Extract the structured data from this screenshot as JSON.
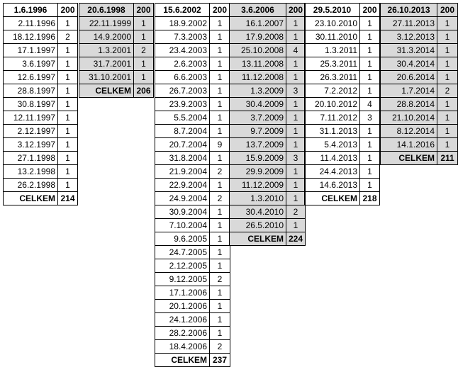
{
  "blocks": [
    {
      "header_date": "1.6.1996",
      "header_count": "200",
      "shaded": false,
      "rows": [
        [
          "2.11.1996",
          "1"
        ],
        [
          "18.12.1996",
          "2"
        ],
        [
          "17.1.1997",
          "1"
        ],
        [
          "3.6.1997",
          "1"
        ],
        [
          "12.6.1997",
          "1"
        ],
        [
          "28.8.1997",
          "1"
        ],
        [
          "30.8.1997",
          "1"
        ],
        [
          "12.11.1997",
          "1"
        ],
        [
          "2.12.1997",
          "1"
        ],
        [
          "3.12.1997",
          "1"
        ],
        [
          "27.1.1998",
          "1"
        ],
        [
          "13.2.1998",
          "1"
        ],
        [
          "26.2.1998",
          "1"
        ]
      ],
      "total_label": "CELKEM",
      "total_value": "214"
    },
    {
      "header_date": "20.6.1998",
      "header_count": "200",
      "shaded": true,
      "rows": [
        [
          "22.11.1999",
          "1"
        ],
        [
          "14.9.2000",
          "1"
        ],
        [
          "1.3.2001",
          "2"
        ],
        [
          "31.7.2001",
          "1"
        ],
        [
          "31.10.2001",
          "1"
        ]
      ],
      "total_label": "CELKEM",
      "total_value": "206"
    },
    {
      "header_date": "15.6.2002",
      "header_count": "200",
      "shaded": false,
      "rows": [
        [
          "18.9.2002",
          "1"
        ],
        [
          "7.3.2003",
          "1"
        ],
        [
          "23.4.2003",
          "1"
        ],
        [
          "2.6.2003",
          "1"
        ],
        [
          "6.6.2003",
          "1"
        ],
        [
          "26.7.2003",
          "1"
        ],
        [
          "23.9.2003",
          "1"
        ],
        [
          "5.5.2004",
          "1"
        ],
        [
          "8.7.2004",
          "1"
        ],
        [
          "20.7.2004",
          "9"
        ],
        [
          "31.8.2004",
          "1"
        ],
        [
          "21.9.2004",
          "2"
        ],
        [
          "22.9.2004",
          "1"
        ],
        [
          "24.9.2004",
          "2"
        ],
        [
          "30.9.2004",
          "1"
        ],
        [
          "7.10.2004",
          "1"
        ],
        [
          "9.6.2005",
          "1"
        ],
        [
          "24.7.2005",
          "1"
        ],
        [
          "2.12.2005",
          "1"
        ],
        [
          "9.12.2005",
          "2"
        ],
        [
          "17.1.2006",
          "1"
        ],
        [
          "20.1.2006",
          "1"
        ],
        [
          "24.1.2006",
          "1"
        ],
        [
          "28.2.2006",
          "1"
        ],
        [
          "18.4.2006",
          "2"
        ]
      ],
      "total_label": "CELKEM",
      "total_value": "237"
    },
    {
      "header_date": "3.6.2006",
      "header_count": "200",
      "shaded": true,
      "rows": [
        [
          "16.1.2007",
          "1"
        ],
        [
          "17.9.2008",
          "1"
        ],
        [
          "25.10.2008",
          "4"
        ],
        [
          "13.11.2008",
          "1"
        ],
        [
          "11.12.2008",
          "1"
        ],
        [
          "1.3.2009",
          "3"
        ],
        [
          "30.4.2009",
          "1"
        ],
        [
          "3.7.2009",
          "1"
        ],
        [
          "9.7.2009",
          "1"
        ],
        [
          "13.7.2009",
          "1"
        ],
        [
          "15.9.2009",
          "3"
        ],
        [
          "29.9.2009",
          "1"
        ],
        [
          "11.12.2009",
          "1"
        ],
        [
          "1.3.2010",
          "1"
        ],
        [
          "30.4.2010",
          "2"
        ],
        [
          "26.5.2010",
          "1"
        ]
      ],
      "total_label": "CELKEM",
      "total_value": "224"
    },
    {
      "header_date": "29.5.2010",
      "header_count": "200",
      "shaded": false,
      "rows": [
        [
          "23.10.2010",
          "1"
        ],
        [
          "30.11.2010",
          "1"
        ],
        [
          "1.3.2011",
          "1"
        ],
        [
          "25.3.2011",
          "1"
        ],
        [
          "26.3.2011",
          "1"
        ],
        [
          "7.2.2012",
          "1"
        ],
        [
          "20.10.2012",
          "4"
        ],
        [
          "7.11.2012",
          "3"
        ],
        [
          "31.1.2013",
          "1"
        ],
        [
          "5.4.2013",
          "1"
        ],
        [
          "11.4.2013",
          "1"
        ],
        [
          "24.4.2013",
          "1"
        ],
        [
          "14.6.2013",
          "1"
        ]
      ],
      "total_label": "CELKEM",
      "total_value": "218"
    },
    {
      "header_date": "26.10.2013",
      "header_count": "200",
      "shaded": true,
      "rows": [
        [
          "27.11.2013",
          "1"
        ],
        [
          "3.12.2013",
          "1"
        ],
        [
          "31.3.2014",
          "1"
        ],
        [
          "30.4.2014",
          "1"
        ],
        [
          "20.6.2014",
          "1"
        ],
        [
          "1.7.2014",
          "2"
        ],
        [
          "28.8.2014",
          "1"
        ],
        [
          "21.10.2014",
          "1"
        ],
        [
          "8.12.2014",
          "1"
        ],
        [
          "14.1.2016",
          "1"
        ]
      ],
      "total_label": "CELKEM",
      "total_value": "211"
    }
  ]
}
